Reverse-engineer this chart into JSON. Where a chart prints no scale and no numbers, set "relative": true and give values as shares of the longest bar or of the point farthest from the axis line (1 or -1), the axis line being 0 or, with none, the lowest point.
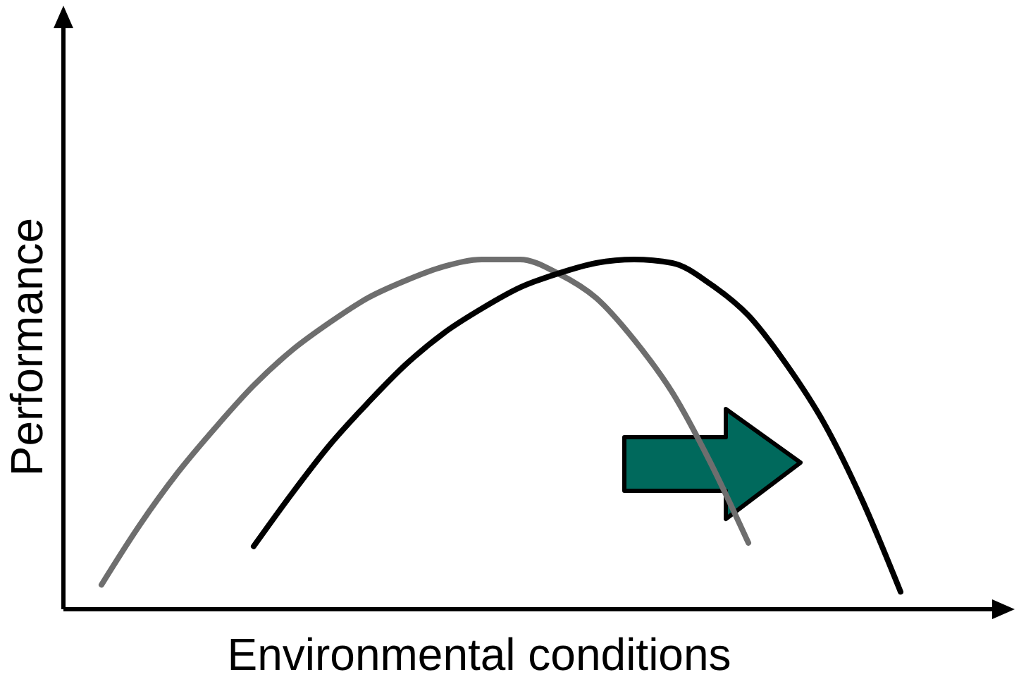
{
  "chart_data": {
    "type": "line",
    "relative": true,
    "xlabel": "Environmental conditions",
    "ylabel": "Performance",
    "marker": "none",
    "line_style": "solid",
    "categories": [
      null,
      null,
      null,
      null,
      null,
      null,
      null,
      null,
      null,
      null,
      null,
      null,
      null,
      null,
      null,
      null,
      null,
      null,
      null,
      null,
      null,
      null,
      null,
      null,
      null,
      null
    ],
    "series": [
      {
        "color": "#6e6e6e",
        "values": [
          null,
          0.07,
          0.24,
          0.39,
          0.52,
          0.64,
          0.74,
          0.82,
          0.89,
          0.94,
          0.98,
          1.0,
          1.0,
          0.96,
          0.89,
          0.77,
          0.62,
          0.42,
          0.19,
          null,
          null,
          null,
          null,
          null,
          null,
          null
        ]
      },
      {
        "color": "#000000",
        "values": [
          null,
          null,
          null,
          null,
          null,
          0.18,
          0.33,
          0.47,
          0.59,
          0.7,
          0.79,
          0.86,
          0.92,
          0.96,
          0.99,
          1.0,
          0.99,
          0.93,
          0.84,
          0.7,
          0.53,
          0.31,
          0.05,
          null,
          null,
          null
        ]
      }
    ]
  }
}
